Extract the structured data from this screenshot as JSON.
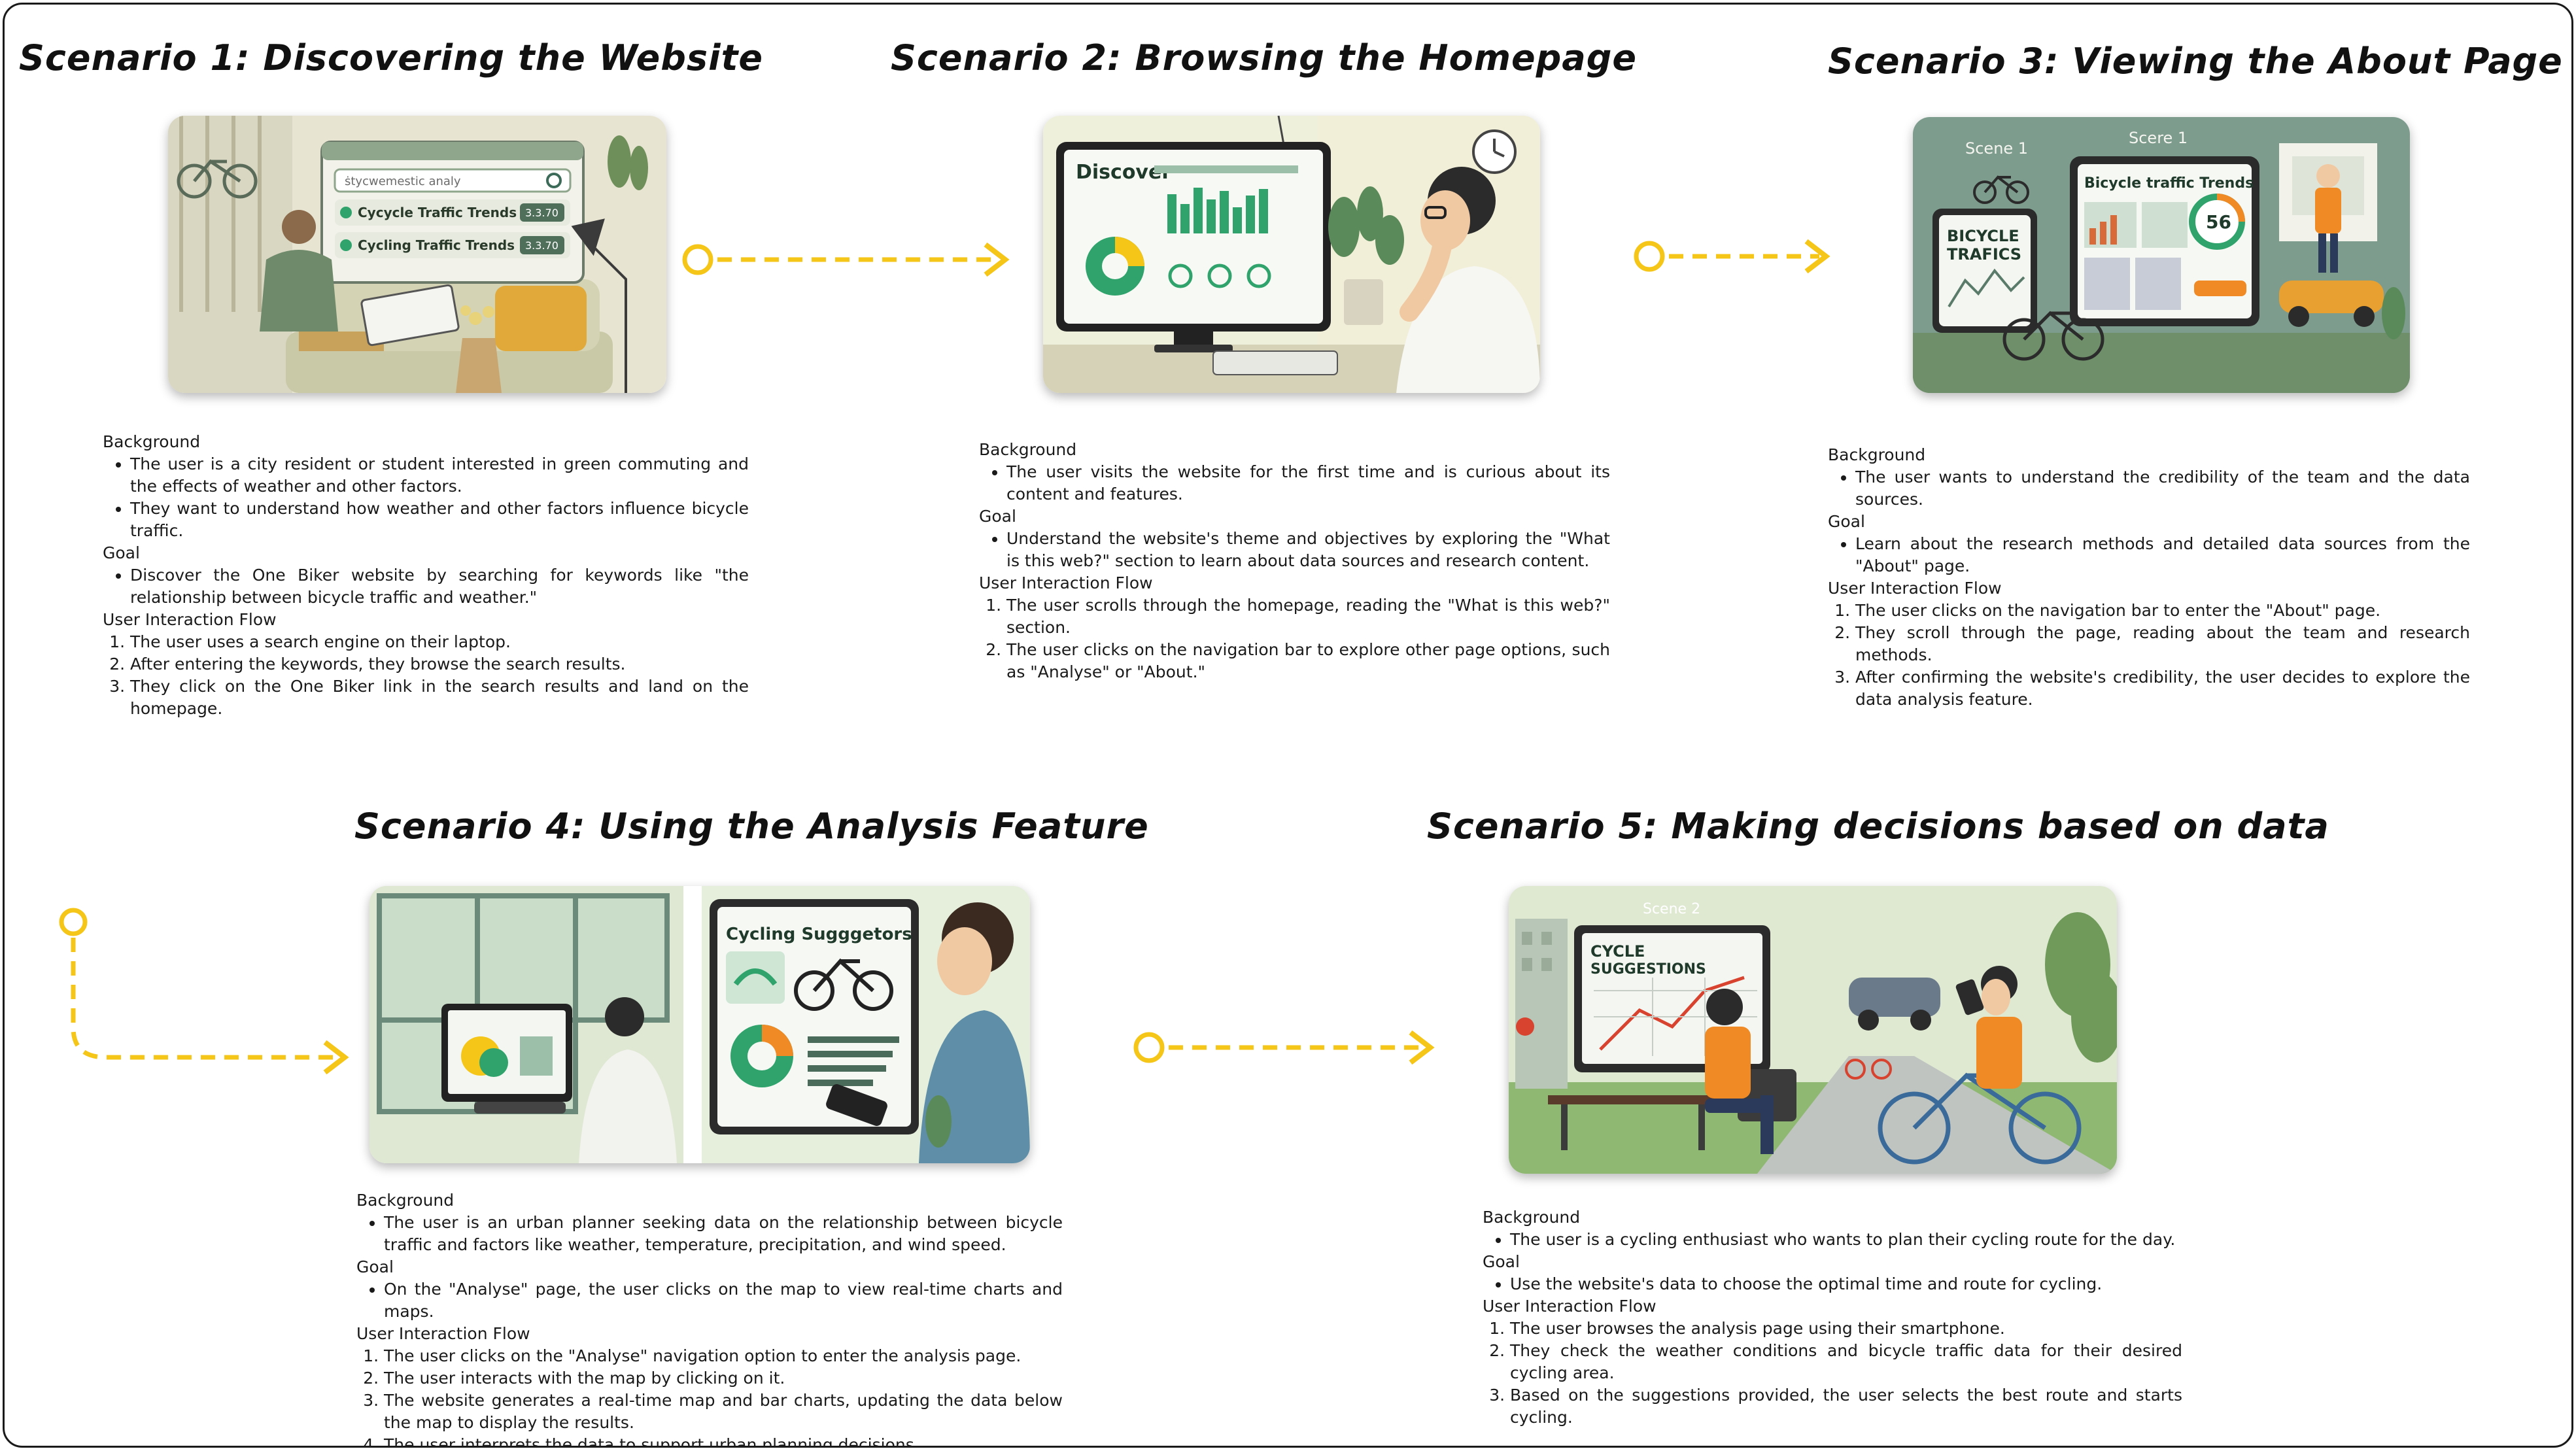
{
  "section_labels": {
    "background": "Background",
    "goal": "Goal",
    "flow": "User Interaction Flow"
  },
  "scenarios": [
    {
      "title": "Scenario 1: Discovering the Website",
      "background": [
        "The user is a city resident or student interested in green commuting and the effects of weather and other factors.",
        "They want to understand how weather and other factors influence bicycle traffic."
      ],
      "goal": [
        "Discover the One Biker website by searching for keywords like \"the relationship between bicycle traffic and weather.\""
      ],
      "flow": [
        "The user uses a search engine on their laptop.",
        "After entering the keywords, they browse the search results.",
        "They click on the One Biker link in the search results and land on the homepage."
      ]
    },
    {
      "title": "Scenario 2: Browsing the Homepage",
      "background": [
        "The user visits the website for the first time and is curious about its content and features."
      ],
      "goal": [
        "Understand the website's theme and objectives by exploring the \"What is this web?\" section to learn about data sources and research content."
      ],
      "flow": [
        "The user scrolls through the homepage, reading the \"What is this web?\" section.",
        "The user clicks on the navigation bar to explore other page options, such as \"Analyse\" or \"About.\""
      ]
    },
    {
      "title": "Scenario 3: Viewing the About Page",
      "background": [
        "The user wants to understand the credibility of the team and the data sources."
      ],
      "goal": [
        "Learn about the research methods and detailed data sources from the \"About\" page."
      ],
      "flow": [
        "The user clicks on the navigation bar to enter the \"About\" page.",
        "They scroll through the page, reading about the team and research methods.",
        "After confirming the website's credibility, the user decides to explore the data analysis feature."
      ]
    },
    {
      "title": "Scenario 4: Using the Analysis Feature",
      "background": [
        "The user is an urban planner seeking data on the relationship between bicycle traffic and factors like weather, temperature, precipitation, and wind speed."
      ],
      "goal": [
        "On the \"Analyse\" page, the user clicks on the map to view real-time charts and maps."
      ],
      "flow": [
        "The user clicks on the \"Analyse\" navigation option to enter the analysis page.",
        "The user interacts with the map by clicking on it.",
        "The website generates a real-time map and bar charts, updating the data below the map to display the results.",
        "The user interprets the data to support urban planning decisions."
      ]
    },
    {
      "title": "Scenario 5: Making decisions based on data",
      "background": [
        "The user is a cycling enthusiast who wants to plan their cycling route for the day."
      ],
      "goal": [
        "Use the website's data to choose the optimal time and route for cycling."
      ],
      "flow": [
        "The user browses the analysis page using their smartphone.",
        "They check the weather conditions and bicycle traffic data for their desired cycling area.",
        "Based on the suggestions provided, the user selects the best route and starts cycling."
      ]
    }
  ],
  "illustration_text": {
    "s1_results": [
      "Cycycle Traffic Trends",
      "Cycling Traffic Trends"
    ],
    "s1_scores": [
      "3.3.70",
      "3.3.70"
    ],
    "s1_search": "ṡtycwemestic analy",
    "s2_heading": "Discover",
    "s3_scene_a": "Scene 1",
    "s3_scene_b": "Scere 1",
    "s3_main": "Bicycle traffic Trends",
    "s3_tablet": [
      "BICYCLE",
      "TRAFICS"
    ],
    "s3_gauge": "56",
    "s4_heading": "Cycling Sugggetors",
    "s5_scene": "Scene 2",
    "s5_screen": [
      "CYCLE",
      "SUGGESTIONS"
    ]
  },
  "colors": {
    "arrow": "#F5C518",
    "text": "#1a1a1a",
    "accent_green": "#2fa36b",
    "accent_orange": "#f08a24"
  }
}
